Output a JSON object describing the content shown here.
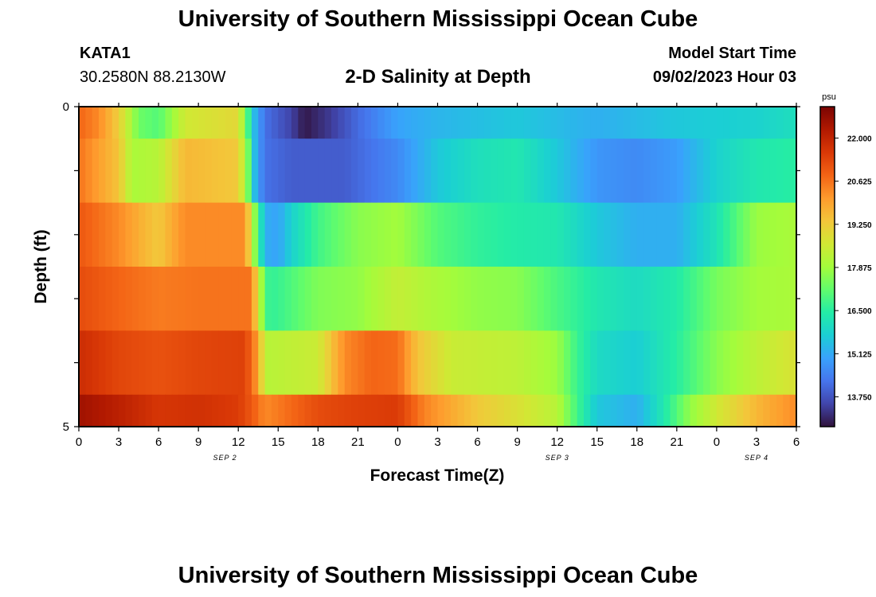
{
  "header": {
    "title": "University of Southern Mississippi Ocean Cube",
    "station": "KATA1",
    "coordinates": "30.2580N  88.2130W",
    "plot_title": "2-D Salinity at Depth",
    "model_start_label": "Model Start Time",
    "model_start_value": "09/02/2023 Hour 03"
  },
  "footer": {
    "title": "University of Southern Mississippi Ocean Cube"
  },
  "colors": {
    "scale": [
      "#30123b",
      "#4145ab",
      "#4675ed",
      "#39a2fc",
      "#1bcfd4",
      "#24eca6",
      "#61fc6c",
      "#a4fc3b",
      "#d1e834",
      "#f3c63a",
      "#fe9b2d",
      "#f36315",
      "#d93806",
      "#b11901",
      "#7a0402"
    ]
  },
  "chart_data": {
    "type": "heatmap",
    "title": "2-D Salinity at Depth",
    "xlabel": "Forecast Time(Z)",
    "ylabel": "Depth (ft)",
    "x_range": [
      0,
      54
    ],
    "y_range": [
      0,
      5
    ],
    "x_ticks": [
      {
        "hour": 0,
        "label": "0"
      },
      {
        "hour": 3,
        "label": "3"
      },
      {
        "hour": 6,
        "label": "6"
      },
      {
        "hour": 9,
        "label": "9"
      },
      {
        "hour": 12,
        "label": "12"
      },
      {
        "hour": 15,
        "label": "15"
      },
      {
        "hour": 18,
        "label": "18"
      },
      {
        "hour": 21,
        "label": "21"
      },
      {
        "hour": 24,
        "label": "0"
      },
      {
        "hour": 27,
        "label": "3"
      },
      {
        "hour": 30,
        "label": "6"
      },
      {
        "hour": 33,
        "label": "9"
      },
      {
        "hour": 36,
        "label": "12"
      },
      {
        "hour": 39,
        "label": "15"
      },
      {
        "hour": 42,
        "label": "18"
      },
      {
        "hour": 45,
        "label": "21"
      },
      {
        "hour": 48,
        "label": "0"
      },
      {
        "hour": 51,
        "label": "3"
      },
      {
        "hour": 54,
        "label": "6"
      }
    ],
    "date_labels": [
      {
        "hour": 11,
        "label": "SEP 2"
      },
      {
        "hour": 36,
        "label": "SEP 3"
      },
      {
        "hour": 51,
        "label": "SEP 4"
      }
    ],
    "y_ticks": [
      {
        "value": 0,
        "label": "0"
      },
      {
        "value": 5,
        "label": "5"
      }
    ],
    "colorbar": {
      "unit": "psu",
      "range": [
        12.8,
        23.0
      ],
      "ticks": [
        "22.000",
        "20.625",
        "19.250",
        "17.875",
        "16.500",
        "15.125",
        "13.750"
      ]
    },
    "layers": [
      {
        "depth_top": 0,
        "depth_bottom": 0.5,
        "keyframes": [
          [
            0,
            20.8
          ],
          [
            1.5,
            20.3
          ],
          [
            3,
            19.2
          ],
          [
            4.5,
            17.3
          ],
          [
            6,
            17.0
          ],
          [
            8,
            18.6
          ],
          [
            12,
            19.0
          ],
          [
            12.6,
            17.2
          ],
          [
            13.2,
            15.4
          ],
          [
            14,
            14.2
          ],
          [
            16,
            13.5
          ],
          [
            17,
            12.9
          ],
          [
            19,
            13.4
          ],
          [
            21,
            14.1
          ],
          [
            24,
            15.0
          ],
          [
            27,
            15.3
          ],
          [
            33,
            15.6
          ],
          [
            39,
            15.2
          ],
          [
            45,
            15.6
          ],
          [
            51,
            15.8
          ],
          [
            54,
            16.1
          ]
        ]
      },
      {
        "depth_top": 0.5,
        "depth_bottom": 1.5,
        "keyframes": [
          [
            0,
            20.6
          ],
          [
            3,
            19.4
          ],
          [
            4,
            18.0
          ],
          [
            6,
            18.2
          ],
          [
            8,
            19.6
          ],
          [
            12,
            19.3
          ],
          [
            12.7,
            17.5
          ],
          [
            13.3,
            15.2
          ],
          [
            14,
            14.2
          ],
          [
            16,
            13.9
          ],
          [
            20,
            13.9
          ],
          [
            24,
            14.6
          ],
          [
            27,
            15.6
          ],
          [
            30,
            16.1
          ],
          [
            33,
            16.3
          ],
          [
            36,
            15.6
          ],
          [
            39,
            14.8
          ],
          [
            42,
            14.6
          ],
          [
            45,
            14.9
          ],
          [
            48,
            15.8
          ],
          [
            51,
            16.3
          ],
          [
            54,
            16.5
          ]
        ]
      },
      {
        "depth_top": 1.5,
        "depth_bottom": 2.5,
        "keyframes": [
          [
            0,
            21.0
          ],
          [
            3,
            20.3
          ],
          [
            5,
            19.6
          ],
          [
            6,
            19.3
          ],
          [
            8,
            20.3
          ],
          [
            12.5,
            20.3
          ],
          [
            13.2,
            17.8
          ],
          [
            14,
            15.2
          ],
          [
            15,
            15.0
          ],
          [
            16,
            15.8
          ],
          [
            18,
            16.8
          ],
          [
            21,
            17.6
          ],
          [
            24,
            17.9
          ],
          [
            27,
            17.0
          ],
          [
            30,
            16.6
          ],
          [
            33,
            16.4
          ],
          [
            36,
            16.3
          ],
          [
            39,
            15.6
          ],
          [
            42,
            15.2
          ],
          [
            45,
            15.2
          ],
          [
            48,
            16.2
          ],
          [
            51,
            17.8
          ],
          [
            54,
            18.0
          ]
        ]
      },
      {
        "depth_top": 2.5,
        "depth_bottom": 3.5,
        "keyframes": [
          [
            0,
            21.2
          ],
          [
            3,
            20.8
          ],
          [
            6,
            20.5
          ],
          [
            9,
            20.6
          ],
          [
            13,
            20.6
          ],
          [
            13.6,
            18.2
          ],
          [
            14.3,
            16.6
          ],
          [
            15,
            16.7
          ],
          [
            18,
            17.5
          ],
          [
            21,
            17.7
          ],
          [
            24,
            18.4
          ],
          [
            27,
            18.0
          ],
          [
            30,
            17.7
          ],
          [
            33,
            17.6
          ],
          [
            36,
            16.9
          ],
          [
            39,
            16.3
          ],
          [
            42,
            16.0
          ],
          [
            45,
            16.4
          ],
          [
            48,
            17.4
          ],
          [
            51,
            17.9
          ],
          [
            54,
            18.0
          ]
        ]
      },
      {
        "depth_top": 3.5,
        "depth_bottom": 4.5,
        "keyframes": [
          [
            0,
            21.8
          ],
          [
            3,
            21.3
          ],
          [
            6,
            21.1
          ],
          [
            9,
            21.3
          ],
          [
            12.5,
            21.4
          ],
          [
            13.5,
            20.0
          ],
          [
            14,
            18.2
          ],
          [
            18,
            18.5
          ],
          [
            20,
            20.3
          ],
          [
            22,
            20.8
          ],
          [
            24,
            20.7
          ],
          [
            25.5,
            19.4
          ],
          [
            28,
            18.5
          ],
          [
            33,
            18.3
          ],
          [
            36,
            17.8
          ],
          [
            37.5,
            16.7
          ],
          [
            39,
            16.0
          ],
          [
            42,
            15.7
          ],
          [
            45,
            16.5
          ],
          [
            48,
            17.6
          ],
          [
            51,
            18.3
          ],
          [
            54,
            18.8
          ]
        ]
      },
      {
        "depth_top": 4.5,
        "depth_bottom": 5.0,
        "keyframes": [
          [
            0,
            22.5
          ],
          [
            3,
            22.1
          ],
          [
            6,
            21.6
          ],
          [
            9,
            21.7
          ],
          [
            12,
            21.5
          ],
          [
            13,
            21.0
          ],
          [
            14,
            20.3
          ],
          [
            18,
            21.2
          ],
          [
            21,
            21.4
          ],
          [
            24,
            21.5
          ],
          [
            26,
            20.4
          ],
          [
            30,
            19.3
          ],
          [
            33,
            18.8
          ],
          [
            36,
            18.2
          ],
          [
            37.5,
            16.8
          ],
          [
            39,
            15.6
          ],
          [
            42,
            15.2
          ],
          [
            44,
            16.3
          ],
          [
            46,
            17.7
          ],
          [
            48,
            18.6
          ],
          [
            51,
            19.6
          ],
          [
            54,
            20.3
          ]
        ]
      }
    ]
  }
}
